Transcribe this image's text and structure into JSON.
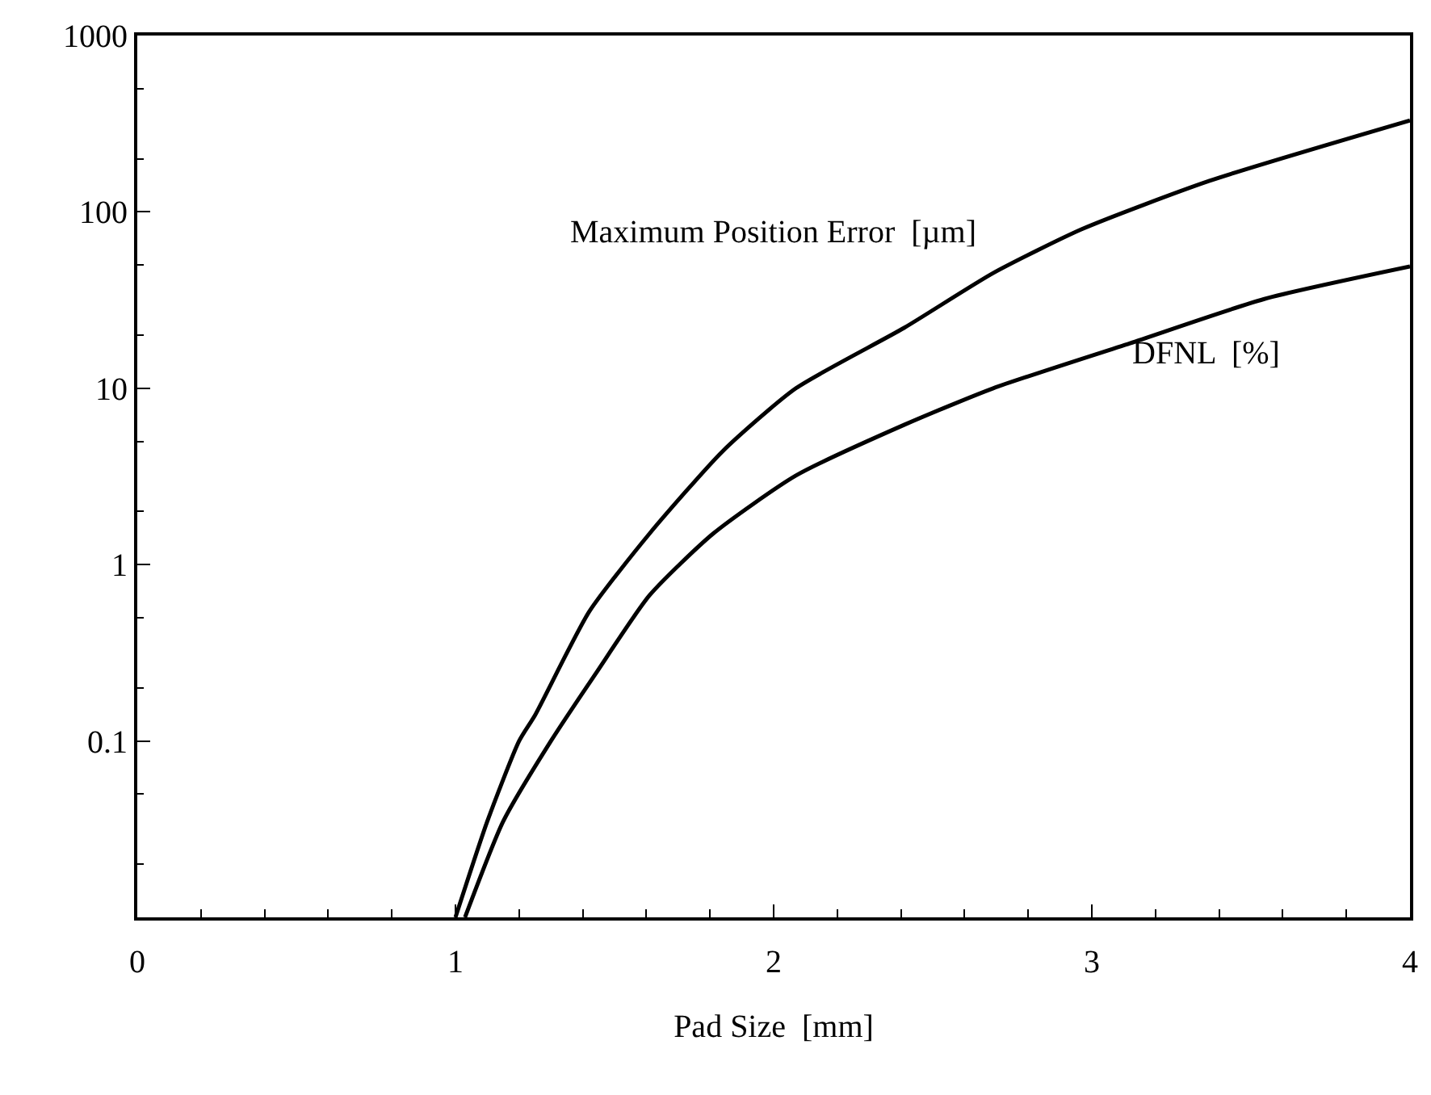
{
  "chart_data": {
    "type": "line",
    "xlabel": "Pad Size  [mm]",
    "log": "y",
    "grid": false,
    "legend": false,
    "marker": "none",
    "line_style": "solid",
    "xlim": [
      0,
      4
    ],
    "xticks": [
      0,
      1,
      2,
      3,
      4
    ],
    "ylim": [
      0.01,
      1000
    ],
    "yticks": [
      0.1,
      1,
      10,
      100,
      1000
    ],
    "series": [
      {
        "name": "Maximum Position Error  [µm]",
        "color": "#000000",
        "x": [
          1.0,
          1.1,
          1.2,
          1.25,
          1.42,
          1.61,
          1.84,
          2.07,
          2.41,
          2.69,
          2.97,
          3.37,
          4.0
        ],
        "values": [
          0.01,
          0.035,
          0.1,
          0.14,
          0.54,
          1.5,
          4.4,
          10,
          22,
          45,
          80,
          150,
          330
        ]
      },
      {
        "name": "DFNL  [%]",
        "color": "#000000",
        "x": [
          1.03,
          1.15,
          1.3,
          1.44,
          1.61,
          1.81,
          2.07,
          2.41,
          2.69,
          3.12,
          3.54,
          4.0
        ],
        "values": [
          0.01,
          0.035,
          0.1,
          0.24,
          0.67,
          1.5,
          3.2,
          6.2,
          10,
          18,
          32,
          49
        ]
      }
    ]
  }
}
